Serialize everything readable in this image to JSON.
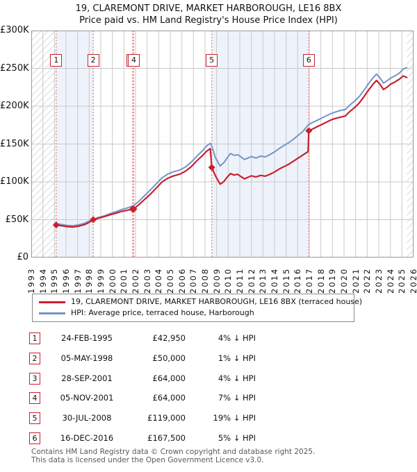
{
  "chart_data": {
    "type": "line",
    "title": "19, CLAREMONT DRIVE, MARKET HARBOROUGH, LE16 8BX",
    "subtitle": "Price paid vs. HM Land Registry's House Price Index (HPI)",
    "x_range": [
      1993,
      2026
    ],
    "y_range": [
      0,
      300000
    ],
    "grid": true,
    "legend_position": "below",
    "x_ticks": [
      1993,
      1994,
      1995,
      1996,
      1997,
      1998,
      1999,
      2000,
      2001,
      2002,
      2003,
      2004,
      2005,
      2006,
      2007,
      2008,
      2009,
      2010,
      2011,
      2012,
      2013,
      2014,
      2015,
      2016,
      2017,
      2018,
      2019,
      2020,
      2021,
      2022,
      2023,
      2024,
      2025,
      2026
    ],
    "y_ticks": [
      {
        "v": 0,
        "label": "£0"
      },
      {
        "v": 50000,
        "label": "£50K"
      },
      {
        "v": 100000,
        "label": "£100K"
      },
      {
        "v": 150000,
        "label": "£150K"
      },
      {
        "v": 200000,
        "label": "£200K"
      },
      {
        "v": 250000,
        "label": "£250K"
      },
      {
        "v": 300000,
        "label": "£300K"
      }
    ],
    "colors": {
      "band": "#eef2fa",
      "hatch_line": "#d9d9d9",
      "grid": "#c9c9c9",
      "border": "#999999",
      "dashed": "#f26b6b"
    },
    "shaded_bands": [
      [
        1995.15,
        1998.35
      ],
      [
        2001.74,
        2001.85
      ],
      [
        2008.58,
        2016.96
      ]
    ],
    "hatched_bands": [
      [
        1993,
        1995.15
      ],
      [
        2025.42,
        2026
      ]
    ],
    "markers": [
      {
        "label": "1",
        "x": 1995.15,
        "value": 42950
      },
      {
        "label": "2",
        "x": 1998.35,
        "value": 50000
      },
      {
        "label": "3",
        "x": 2001.74,
        "value": 64000
      },
      {
        "label": "4",
        "x": 2001.85,
        "value": 64000
      },
      {
        "label": "5",
        "x": 2008.58,
        "value": 119000
      },
      {
        "label": "6",
        "x": 2016.96,
        "value": 167500
      }
    ],
    "series": [
      {
        "name": "19, CLAREMONT DRIVE, MARKET HARBOROUGH, LE16 8BX (terraced house)",
        "color": "#c8202e",
        "width": 2.2,
        "points": [
          [
            1995.15,
            42950
          ],
          [
            1995.6,
            42000
          ],
          [
            1996.1,
            40800
          ],
          [
            1996.6,
            40300
          ],
          [
            1997.1,
            41500
          ],
          [
            1997.6,
            43500
          ],
          [
            1998.0,
            46500
          ],
          [
            1998.35,
            50000
          ],
          [
            1998.8,
            52000
          ],
          [
            1999.3,
            54000
          ],
          [
            1999.8,
            56500
          ],
          [
            2000.3,
            58500
          ],
          [
            2000.8,
            61000
          ],
          [
            2001.3,
            62500
          ],
          [
            2001.74,
            64000
          ],
          [
            2001.85,
            64000
          ],
          [
            2002.3,
            70000
          ],
          [
            2002.8,
            77000
          ],
          [
            2003.3,
            84000
          ],
          [
            2003.8,
            92000
          ],
          [
            2004.3,
            100000
          ],
          [
            2004.8,
            105000
          ],
          [
            2005.3,
            108000
          ],
          [
            2005.8,
            110000
          ],
          [
            2006.3,
            114000
          ],
          [
            2006.8,
            120000
          ],
          [
            2007.3,
            128000
          ],
          [
            2007.8,
            135000
          ],
          [
            2008.1,
            140000
          ],
          [
            2008.45,
            144000
          ],
          [
            2008.58,
            119000
          ],
          [
            2008.9,
            108000
          ],
          [
            2009.3,
            97000
          ],
          [
            2009.6,
            100000
          ],
          [
            2009.9,
            106000
          ],
          [
            2010.2,
            111000
          ],
          [
            2010.5,
            109000
          ],
          [
            2010.8,
            110000
          ],
          [
            2011.1,
            107000
          ],
          [
            2011.4,
            104000
          ],
          [
            2011.7,
            106000
          ],
          [
            2012.0,
            108000
          ],
          [
            2012.4,
            106500
          ],
          [
            2012.8,
            108500
          ],
          [
            2013.2,
            107500
          ],
          [
            2013.6,
            110000
          ],
          [
            2014.0,
            113000
          ],
          [
            2014.4,
            117000
          ],
          [
            2014.8,
            120000
          ],
          [
            2015.2,
            123000
          ],
          [
            2015.6,
            127000
          ],
          [
            2016.0,
            131000
          ],
          [
            2016.4,
            135000
          ],
          [
            2016.9,
            140000
          ],
          [
            2016.96,
            167500
          ],
          [
            2017.3,
            170000
          ],
          [
            2017.7,
            173000
          ],
          [
            2018.1,
            176000
          ],
          [
            2018.5,
            179000
          ],
          [
            2018.9,
            182000
          ],
          [
            2019.3,
            184000
          ],
          [
            2019.7,
            185500
          ],
          [
            2020.1,
            187000
          ],
          [
            2020.5,
            193000
          ],
          [
            2020.9,
            198000
          ],
          [
            2021.3,
            204000
          ],
          [
            2021.7,
            212000
          ],
          [
            2022.1,
            221000
          ],
          [
            2022.5,
            229000
          ],
          [
            2022.8,
            234000
          ],
          [
            2023.1,
            229000
          ],
          [
            2023.4,
            222000
          ],
          [
            2023.7,
            225000
          ],
          [
            2024.0,
            229000
          ],
          [
            2024.4,
            232000
          ],
          [
            2024.8,
            236000
          ],
          [
            2025.1,
            240000
          ],
          [
            2025.42,
            238000
          ]
        ]
      },
      {
        "name": "HPI: Average price, terraced house, Harborough",
        "color": "#7295c7",
        "width": 2,
        "points": [
          [
            1995.15,
            44700
          ],
          [
            1995.6,
            43700
          ],
          [
            1996.1,
            42500
          ],
          [
            1996.6,
            42000
          ],
          [
            1997.1,
            43200
          ],
          [
            1997.6,
            45200
          ],
          [
            1998.0,
            48200
          ],
          [
            1998.35,
            50500
          ],
          [
            1998.8,
            53000
          ],
          [
            1999.3,
            55000
          ],
          [
            1999.8,
            58000
          ],
          [
            2000.3,
            60500
          ],
          [
            2000.8,
            63500
          ],
          [
            2001.3,
            65500
          ],
          [
            2001.85,
            68800
          ],
          [
            2002.3,
            74500
          ],
          [
            2002.8,
            82000
          ],
          [
            2003.3,
            89500
          ],
          [
            2003.8,
            97500
          ],
          [
            2004.3,
            105500
          ],
          [
            2004.8,
            110500
          ],
          [
            2005.3,
            113500
          ],
          [
            2005.8,
            115500
          ],
          [
            2006.3,
            119500
          ],
          [
            2006.8,
            126000
          ],
          [
            2007.3,
            134000
          ],
          [
            2007.8,
            141500
          ],
          [
            2008.1,
            147000
          ],
          [
            2008.45,
            151000
          ],
          [
            2008.58,
            147000
          ],
          [
            2008.9,
            132000
          ],
          [
            2009.3,
            121000
          ],
          [
            2009.6,
            125000
          ],
          [
            2009.9,
            131500
          ],
          [
            2010.2,
            137500
          ],
          [
            2010.5,
            135000
          ],
          [
            2010.8,
            136000
          ],
          [
            2011.1,
            133000
          ],
          [
            2011.4,
            129500
          ],
          [
            2011.7,
            131500
          ],
          [
            2012.0,
            133500
          ],
          [
            2012.4,
            131500
          ],
          [
            2012.8,
            134000
          ],
          [
            2013.2,
            133000
          ],
          [
            2013.6,
            136000
          ],
          [
            2014.0,
            139500
          ],
          [
            2014.4,
            144000
          ],
          [
            2014.8,
            148000
          ],
          [
            2015.2,
            151500
          ],
          [
            2015.6,
            156000
          ],
          [
            2016.0,
            161000
          ],
          [
            2016.4,
            166000
          ],
          [
            2016.96,
            176000
          ],
          [
            2017.3,
            178500
          ],
          [
            2017.7,
            181500
          ],
          [
            2018.1,
            184500
          ],
          [
            2018.5,
            187500
          ],
          [
            2018.9,
            190500
          ],
          [
            2019.3,
            192500
          ],
          [
            2019.7,
            194500
          ],
          [
            2020.1,
            195500
          ],
          [
            2020.5,
            201500
          ],
          [
            2020.9,
            206500
          ],
          [
            2021.3,
            212500
          ],
          [
            2021.7,
            220500
          ],
          [
            2022.1,
            229500
          ],
          [
            2022.5,
            237500
          ],
          [
            2022.8,
            242500
          ],
          [
            2023.1,
            237500
          ],
          [
            2023.4,
            230500
          ],
          [
            2023.7,
            233500
          ],
          [
            2024.0,
            237000
          ],
          [
            2024.4,
            240000
          ],
          [
            2024.8,
            244000
          ],
          [
            2025.1,
            249000
          ],
          [
            2025.42,
            251000
          ]
        ]
      }
    ]
  },
  "table": {
    "rows": [
      {
        "num": "1",
        "date": "24-FEB-1995",
        "price": "£42,950",
        "hpi": "4% ↓ HPI"
      },
      {
        "num": "2",
        "date": "05-MAY-1998",
        "price": "£50,000",
        "hpi": "1% ↓ HPI"
      },
      {
        "num": "3",
        "date": "28-SEP-2001",
        "price": "£64,000",
        "hpi": "4% ↓ HPI"
      },
      {
        "num": "4",
        "date": "05-NOV-2001",
        "price": "£64,000",
        "hpi": "7% ↓ HPI"
      },
      {
        "num": "5",
        "date": "30-JUL-2008",
        "price": "£119,000",
        "hpi": "19% ↓ HPI"
      },
      {
        "num": "6",
        "date": "16-DEC-2016",
        "price": "£167,500",
        "hpi": "5% ↓ HPI"
      }
    ]
  },
  "footer": {
    "line1": "Contains HM Land Registry data © Crown copyright and database right 2025.",
    "line2": "This data is licensed under the Open Government Licence v3.0."
  }
}
